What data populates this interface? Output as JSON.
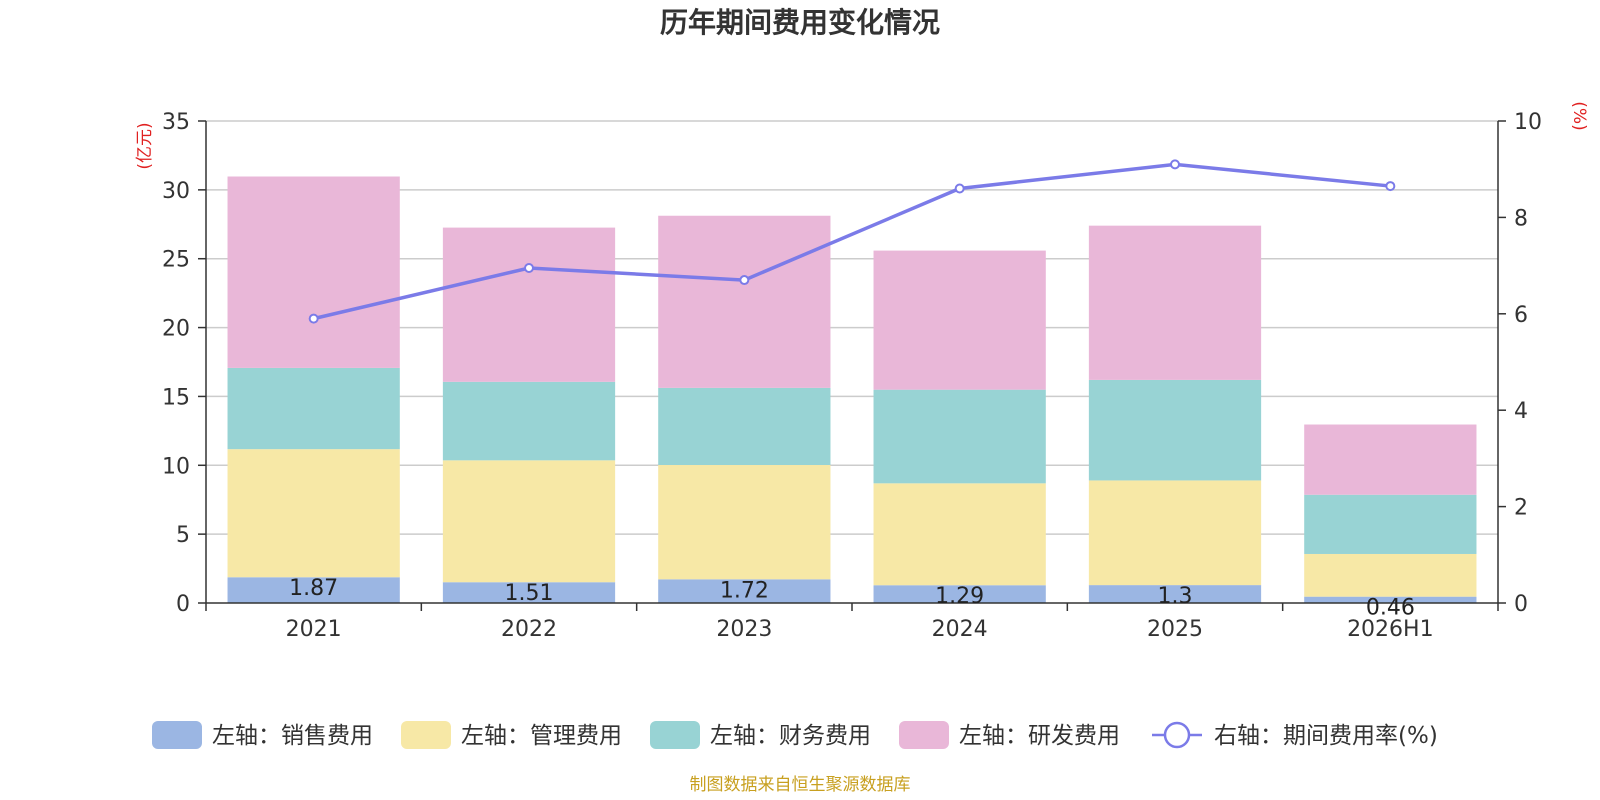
{
  "chart_data": {
    "type": "bar",
    "title": "历年期间费用变化情况",
    "categories": [
      "2021",
      "2022",
      "2023",
      "2024",
      "2025",
      "2026H1"
    ],
    "left_axis": {
      "unit": "(亿元)",
      "ylim": [
        0,
        35
      ],
      "ticks": [
        0,
        5,
        10,
        15,
        20,
        25,
        30,
        35
      ]
    },
    "right_axis": {
      "unit": "(%)",
      "ylim": [
        0,
        10
      ],
      "ticks": [
        0,
        2,
        4,
        6,
        8,
        10
      ]
    },
    "grid": true,
    "legend_position": "bottom",
    "series": [
      {
        "name": "左轴：销售费用",
        "kind": "bar",
        "axis": "left",
        "color": "#9bb6e3",
        "values": [
          1.87,
          1.51,
          1.72,
          1.29,
          1.3,
          0.46
        ],
        "labels": [
          "1.87",
          "1.51",
          "1.72",
          "1.29",
          "1.3",
          "0.46"
        ]
      },
      {
        "name": "左轴：管理费用",
        "kind": "bar",
        "axis": "left",
        "color": "#f7e8a6",
        "values": [
          9.3,
          8.85,
          8.3,
          7.4,
          7.6,
          3.1
        ]
      },
      {
        "name": "左轴：财务费用",
        "kind": "bar",
        "axis": "left",
        "color": "#98d3d4",
        "values": [
          5.9,
          5.7,
          5.6,
          6.8,
          7.3,
          4.3
        ]
      },
      {
        "name": "左轴：研发费用",
        "kind": "bar",
        "axis": "left",
        "color": "#e9b7d8",
        "values": [
          13.9,
          11.2,
          12.5,
          10.1,
          11.2,
          5.1
        ]
      },
      {
        "name": "右轴：期间费用率(%)",
        "kind": "line",
        "axis": "right",
        "color": "#7b7be8",
        "values": [
          5.9,
          6.95,
          6.7,
          8.6,
          9.1,
          8.65
        ]
      }
    ]
  },
  "footer": {
    "source": "制图数据来自恒生聚源数据库"
  }
}
